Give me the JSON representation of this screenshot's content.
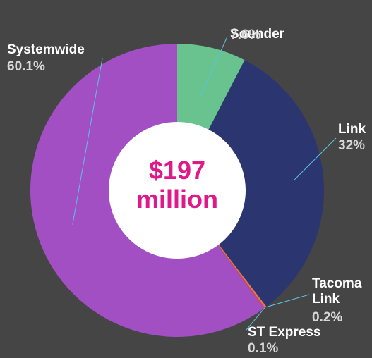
{
  "chart_data": {
    "type": "pie",
    "center_text": [
      "$197",
      "million"
    ],
    "categories": [
      "Sounder",
      "Link",
      "Tacoma Link",
      "ST Express",
      "Systemwide"
    ],
    "values": [
      7.6,
      32,
      0.2,
      0.1,
      60.1
    ],
    "value_labels": [
      "7.6%",
      "32%",
      "0.2%",
      "0.1%",
      "60.1%"
    ],
    "colors": [
      "#68c38e",
      "#2b3671",
      "#e8735a",
      "#d8502f",
      "#a24fc4"
    ],
    "center_text_color": "#e0198a",
    "label_color": "#ffffff",
    "value_color": "#d7d7d7",
    "leader_line_color": "#5bc3e3",
    "background_color": "#454545"
  }
}
